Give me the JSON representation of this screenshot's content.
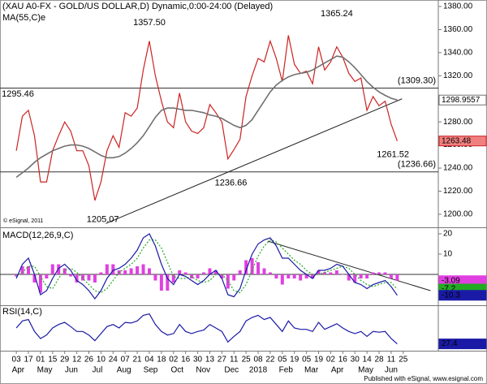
{
  "chart_data": [
    {
      "type": "line",
      "title": "(XAU A0-FX - GOLD/US DOLLAR,D) Dynamic,0:00-24:00 (Delayed)",
      "note": "© eSignal, 2011",
      "xlim": [
        -2.7,
        69.8
      ],
      "ylim": [
        1188.7,
        1385.6
      ],
      "yticks": [
        {
          "value": 1200,
          "label": "1200.00"
        },
        {
          "value": 1220,
          "label": "1220.00"
        },
        {
          "value": 1240,
          "label": "1240.00"
        },
        {
          "value": 1260,
          "label": "1260.00"
        },
        {
          "value": 1280,
          "label": "1280.00"
        },
        {
          "value": 1300,
          "label": "1300.00"
        },
        {
          "value": 1320,
          "label": "1320.00"
        },
        {
          "value": 1340,
          "label": "1340.00"
        },
        {
          "value": 1360,
          "label": "1360.00"
        },
        {
          "value": 1380,
          "label": "1380.00"
        }
      ],
      "series": [
        {
          "color": "#cc2222",
          "box_fill": "#f08080",
          "values": [
            1255,
            1285,
            1290,
            1268,
            1228,
            1228,
            1255,
            1268,
            1280,
            1272,
            1255,
            1255,
            1242,
            1212,
            1228,
            1255,
            1268,
            1258,
            1288,
            1285,
            1292,
            1325,
            1350,
            1320,
            1298,
            1280,
            1275,
            1305,
            1280,
            1272,
            1270,
            1275,
            1295,
            1288,
            1280,
            1248,
            1256,
            1265,
            1302,
            1320,
            1335,
            1332,
            1350,
            1335,
            1315,
            1355,
            1330,
            1322,
            1324,
            1313,
            1345,
            1325,
            1332,
            1345,
            1336,
            1322,
            1315,
            1318,
            1290,
            1302,
            1294,
            1298,
            1278,
            1263.48
          ]
        },
        {
          "name": "MA(55,C)e",
          "color": "#707070",
          "box_fill": "#ffffff",
          "values": [
            1232,
            1236,
            1240,
            1245,
            1249,
            1252,
            1255,
            1257,
            1259,
            1260,
            1260,
            1259,
            1257,
            1254,
            1251,
            1249,
            1249,
            1250,
            1253,
            1257,
            1262,
            1268,
            1276,
            1284,
            1290,
            1292,
            1292,
            1291,
            1290,
            1290,
            1289,
            1288,
            1286,
            1285,
            1283,
            1280,
            1277,
            1275,
            1277,
            1282,
            1290,
            1298,
            1306,
            1312,
            1316,
            1319,
            1321,
            1322,
            1323,
            1325,
            1328,
            1331,
            1334,
            1337,
            1336,
            1332,
            1327,
            1321,
            1315,
            1310,
            1306,
            1303,
            1300.5,
            1298.9557
          ]
        }
      ],
      "hlines": [
        {
          "value": 1309.3,
          "label": "(1309.30)"
        },
        {
          "value": 1236.66,
          "label": "(1236.66)"
        }
      ],
      "trendlines": [
        {
          "x": [
            14.8,
            63.8
          ],
          "y": [
            1192,
            1300
          ]
        }
      ],
      "annotations": [
        {
          "x": 0,
          "y": 1295.46,
          "label": "1295.46"
        },
        {
          "x": 22,
          "y": 1357.5,
          "label": "1357.50"
        },
        {
          "x": 53,
          "y": 1365.24,
          "label": "1365.24"
        },
        {
          "x": 35.5,
          "y": 1236.66,
          "label": "1236.66"
        },
        {
          "x": 14.3,
          "y": 1205.07,
          "label": "1205.07"
        },
        {
          "x": 62.3,
          "y": 1261.52,
          "label": "1261.52"
        }
      ]
    },
    {
      "type": "macd",
      "title": "MACD(12,26,9,C)",
      "xlim": [
        -2.7,
        69.8
      ],
      "ylim": [
        -14.4,
        22.4
      ],
      "yticks": [
        20,
        10
      ],
      "hlines": [
        {
          "value": 0
        }
      ],
      "trendlines": [
        {
          "x": [
            41.6,
            68.5
          ],
          "y": [
            16.4,
            -8
          ]
        }
      ],
      "series": [
        {
          "kind": "bar",
          "color": "#e040e0",
          "box_fill": "#e040e0",
          "values": [
            -1,
            4,
            4,
            -4,
            -9,
            -2,
            5,
            5,
            3,
            -1,
            -4,
            -3,
            -3,
            -4,
            1,
            5,
            5,
            2,
            2,
            3,
            4,
            5,
            3,
            -3,
            -8,
            -8,
            -4,
            2,
            1,
            -2,
            -2,
            1,
            3,
            2,
            -2,
            -7,
            -3,
            2,
            7,
            8,
            6,
            3,
            1,
            -2,
            -5,
            -2,
            -2,
            -3,
            -2,
            -2,
            2,
            1,
            1,
            2,
            0,
            -3,
            -4,
            -2,
            -2,
            1,
            1,
            1,
            -2,
            -3.09
          ]
        },
        {
          "color": "#22aa22",
          "dash": true,
          "box_fill": "#22aa22",
          "values": [
            -1,
            1,
            4,
            4,
            -1,
            -6,
            -7,
            -2,
            2,
            3,
            1,
            -2,
            -5,
            -8,
            -9,
            -7,
            -3,
            1,
            3,
            5,
            8,
            13,
            17,
            17,
            13,
            6,
            -1,
            -2,
            -2,
            -1,
            -3,
            -4,
            -3,
            0,
            0,
            -3,
            -8,
            -9,
            -5,
            2,
            9,
            14,
            17,
            16,
            13,
            10,
            7,
            5,
            2,
            0,
            0,
            1,
            2,
            3,
            4,
            3,
            0,
            -3,
            -5,
            -6,
            -5,
            -4,
            -4,
            -7.2
          ]
        },
        {
          "color": "#1a1aa6",
          "box_fill": "#1a1aa6",
          "values": [
            -2,
            5,
            8,
            0,
            -10,
            -8,
            -2,
            3,
            5,
            2,
            -3,
            -5,
            -8,
            -12,
            -8,
            -2,
            2,
            3,
            5,
            8,
            12,
            18,
            20,
            14,
            5,
            -2,
            -5,
            0,
            -1,
            -3,
            -5,
            -3,
            0,
            2,
            -2,
            -10,
            -11,
            -7,
            2,
            10,
            15,
            17,
            18,
            14,
            8,
            8,
            5,
            2,
            0,
            -2,
            2,
            2,
            3,
            5,
            4,
            0,
            -4,
            -5,
            -7,
            -5,
            -4,
            -3,
            -6,
            -10.3
          ]
        }
      ]
    },
    {
      "type": "line",
      "title": "RSI(14,C)",
      "xlim": [
        -2.7,
        69.8
      ],
      "ylim": [
        20,
        80
      ],
      "series": [
        {
          "color": "#1a1aa6",
          "box_fill": "#1a1aa6",
          "values": [
            50,
            60,
            62,
            45,
            35,
            40,
            50,
            55,
            58,
            52,
            45,
            45,
            40,
            32,
            42,
            52,
            55,
            50,
            58,
            57,
            60,
            68,
            70,
            55,
            45,
            40,
            42,
            55,
            45,
            42,
            45,
            47,
            55,
            50,
            45,
            30,
            38,
            45,
            60,
            65,
            68,
            62,
            65,
            55,
            45,
            60,
            50,
            48,
            48,
            45,
            58,
            48,
            52,
            56,
            50,
            45,
            42,
            45,
            38,
            45,
            44,
            45,
            35,
            27.4
          ]
        }
      ],
      "xticks": [
        {
          "value": 0,
          "label": "03"
        },
        {
          "value": 2,
          "label": "17"
        },
        {
          "value": 4,
          "label": "01"
        },
        {
          "value": 6,
          "label": "15"
        },
        {
          "value": 8,
          "label": "29"
        },
        {
          "value": 10,
          "label": "12"
        },
        {
          "value": 12,
          "label": "26"
        },
        {
          "value": 14,
          "label": "10"
        },
        {
          "value": 16,
          "label": "24"
        },
        {
          "value": 18,
          "label": "07"
        },
        {
          "value": 20,
          "label": "21"
        },
        {
          "value": 22,
          "label": "04"
        },
        {
          "value": 24,
          "label": "18"
        },
        {
          "value": 26,
          "label": "02"
        },
        {
          "value": 28,
          "label": "16"
        },
        {
          "value": 30,
          "label": "30"
        },
        {
          "value": 32,
          "label": "13"
        },
        {
          "value": 34,
          "label": "27"
        },
        {
          "value": 36,
          "label": "11"
        },
        {
          "value": 38,
          "label": "25"
        },
        {
          "value": 40,
          "label": "08"
        },
        {
          "value": 42,
          "label": "22"
        },
        {
          "value": 44,
          "label": "05"
        },
        {
          "value": 46,
          "label": "19"
        },
        {
          "value": 48,
          "label": "05"
        },
        {
          "value": 50,
          "label": "19"
        },
        {
          "value": 52,
          "label": "02"
        },
        {
          "value": 54,
          "label": "16"
        },
        {
          "value": 56,
          "label": "30"
        },
        {
          "value": 58,
          "label": "14"
        },
        {
          "value": 60,
          "label": "28"
        },
        {
          "value": 62,
          "label": "11"
        },
        {
          "value": 64,
          "label": "25"
        }
      ],
      "months": [
        {
          "value": 0.3,
          "label": "Apr"
        },
        {
          "value": 4.7,
          "label": "May"
        },
        {
          "value": 9.1,
          "label": "Jun"
        },
        {
          "value": 13.4,
          "label": "Jul"
        },
        {
          "value": 17.8,
          "label": "Aug"
        },
        {
          "value": 22.2,
          "label": "Sep"
        },
        {
          "value": 26.6,
          "label": "Oct"
        },
        {
          "value": 30.9,
          "label": "Nov"
        },
        {
          "value": 35.6,
          "label": "Dec"
        },
        {
          "value": 40,
          "label": "2018"
        },
        {
          "value": 44.6,
          "label": "Feb"
        },
        {
          "value": 48.8,
          "label": "Mar"
        },
        {
          "value": 53.1,
          "label": "Apr"
        },
        {
          "value": 57.8,
          "label": "May"
        },
        {
          "value": 62,
          "label": "Jun"
        }
      ]
    }
  ],
  "footer": "Published with eSignal, www.esignal.com"
}
